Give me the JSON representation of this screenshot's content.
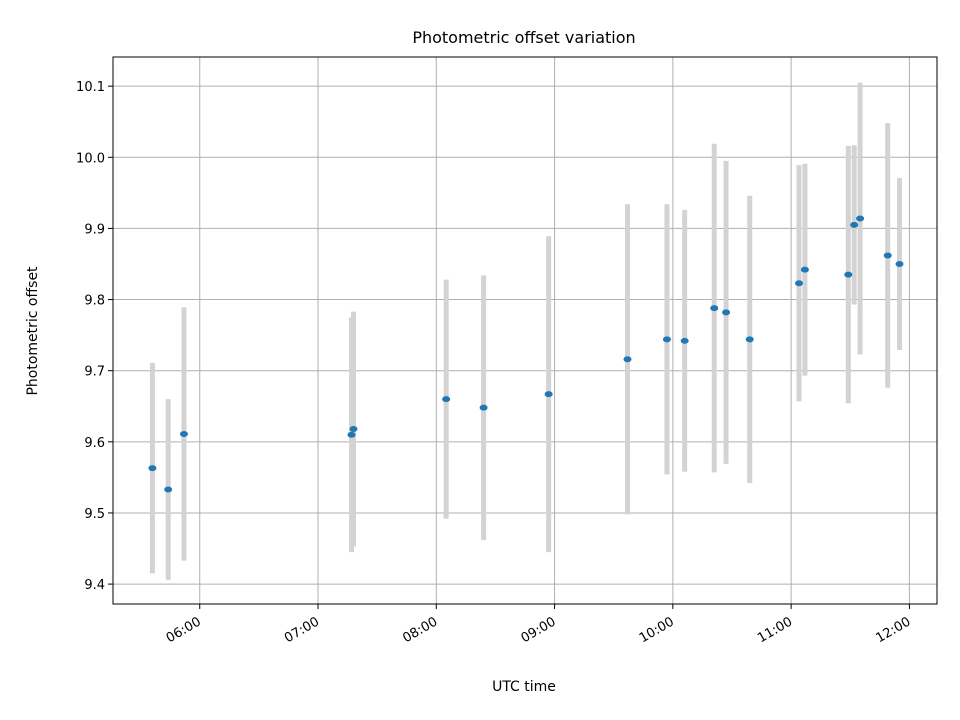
{
  "chart_data": {
    "type": "scatter",
    "title": "Photometric offset variation",
    "xlabel": "UTC time",
    "ylabel": "Photometric offset",
    "x_axis_type": "time",
    "x_ticks": [
      "06:00",
      "07:00",
      "08:00",
      "09:00",
      "10:00",
      "11:00",
      "12:00"
    ],
    "y_ticks": [
      "9.4",
      "9.5",
      "9.6",
      "9.7",
      "9.8",
      "9.9",
      "10.0",
      "10.1"
    ],
    "xlim": [
      "05:16",
      "12:14"
    ],
    "ylim": [
      9.372,
      10.141
    ],
    "grid": true,
    "legend": "none",
    "colors": {
      "point": "#1f77b4",
      "errorbar": "#d3d3d3",
      "grid": "#b0b0b0",
      "axis": "#000000"
    },
    "series": [
      {
        "points": [
          {
            "x": "05:36",
            "y": 9.563,
            "yerr": 0.148
          },
          {
            "x": "05:44",
            "y": 9.533,
            "yerr": 0.127
          },
          {
            "x": "05:52",
            "y": 9.611,
            "yerr": 0.178
          },
          {
            "x": "07:17",
            "y": 9.61,
            "yerr": 0.165
          },
          {
            "x": "07:18",
            "y": 9.618,
            "yerr": 0.165
          },
          {
            "x": "08:05",
            "y": 9.66,
            "yerr": 0.168
          },
          {
            "x": "08:24",
            "y": 9.648,
            "yerr": 0.186
          },
          {
            "x": "08:57",
            "y": 9.667,
            "yerr": 0.222
          },
          {
            "x": "09:37",
            "y": 9.716,
            "yerr": 0.218
          },
          {
            "x": "09:57",
            "y": 9.744,
            "yerr": 0.19
          },
          {
            "x": "10:06",
            "y": 9.742,
            "yerr": 0.184
          },
          {
            "x": "10:21",
            "y": 9.788,
            "yerr": 0.231
          },
          {
            "x": "10:27",
            "y": 9.782,
            "yerr": 0.213
          },
          {
            "x": "10:39",
            "y": 9.744,
            "yerr": 0.202
          },
          {
            "x": "11:04",
            "y": 9.823,
            "yerr": 0.166
          },
          {
            "x": "11:07",
            "y": 9.842,
            "yerr": 0.149
          },
          {
            "x": "11:29",
            "y": 9.835,
            "yerr": 0.181
          },
          {
            "x": "11:32",
            "y": 9.905,
            "yerr": 0.112
          },
          {
            "x": "11:35",
            "y": 9.914,
            "yerr": 0.191
          },
          {
            "x": "11:49",
            "y": 9.862,
            "yerr": 0.186
          },
          {
            "x": "11:55",
            "y": 9.85,
            "yerr": 0.121
          }
        ]
      }
    ]
  }
}
